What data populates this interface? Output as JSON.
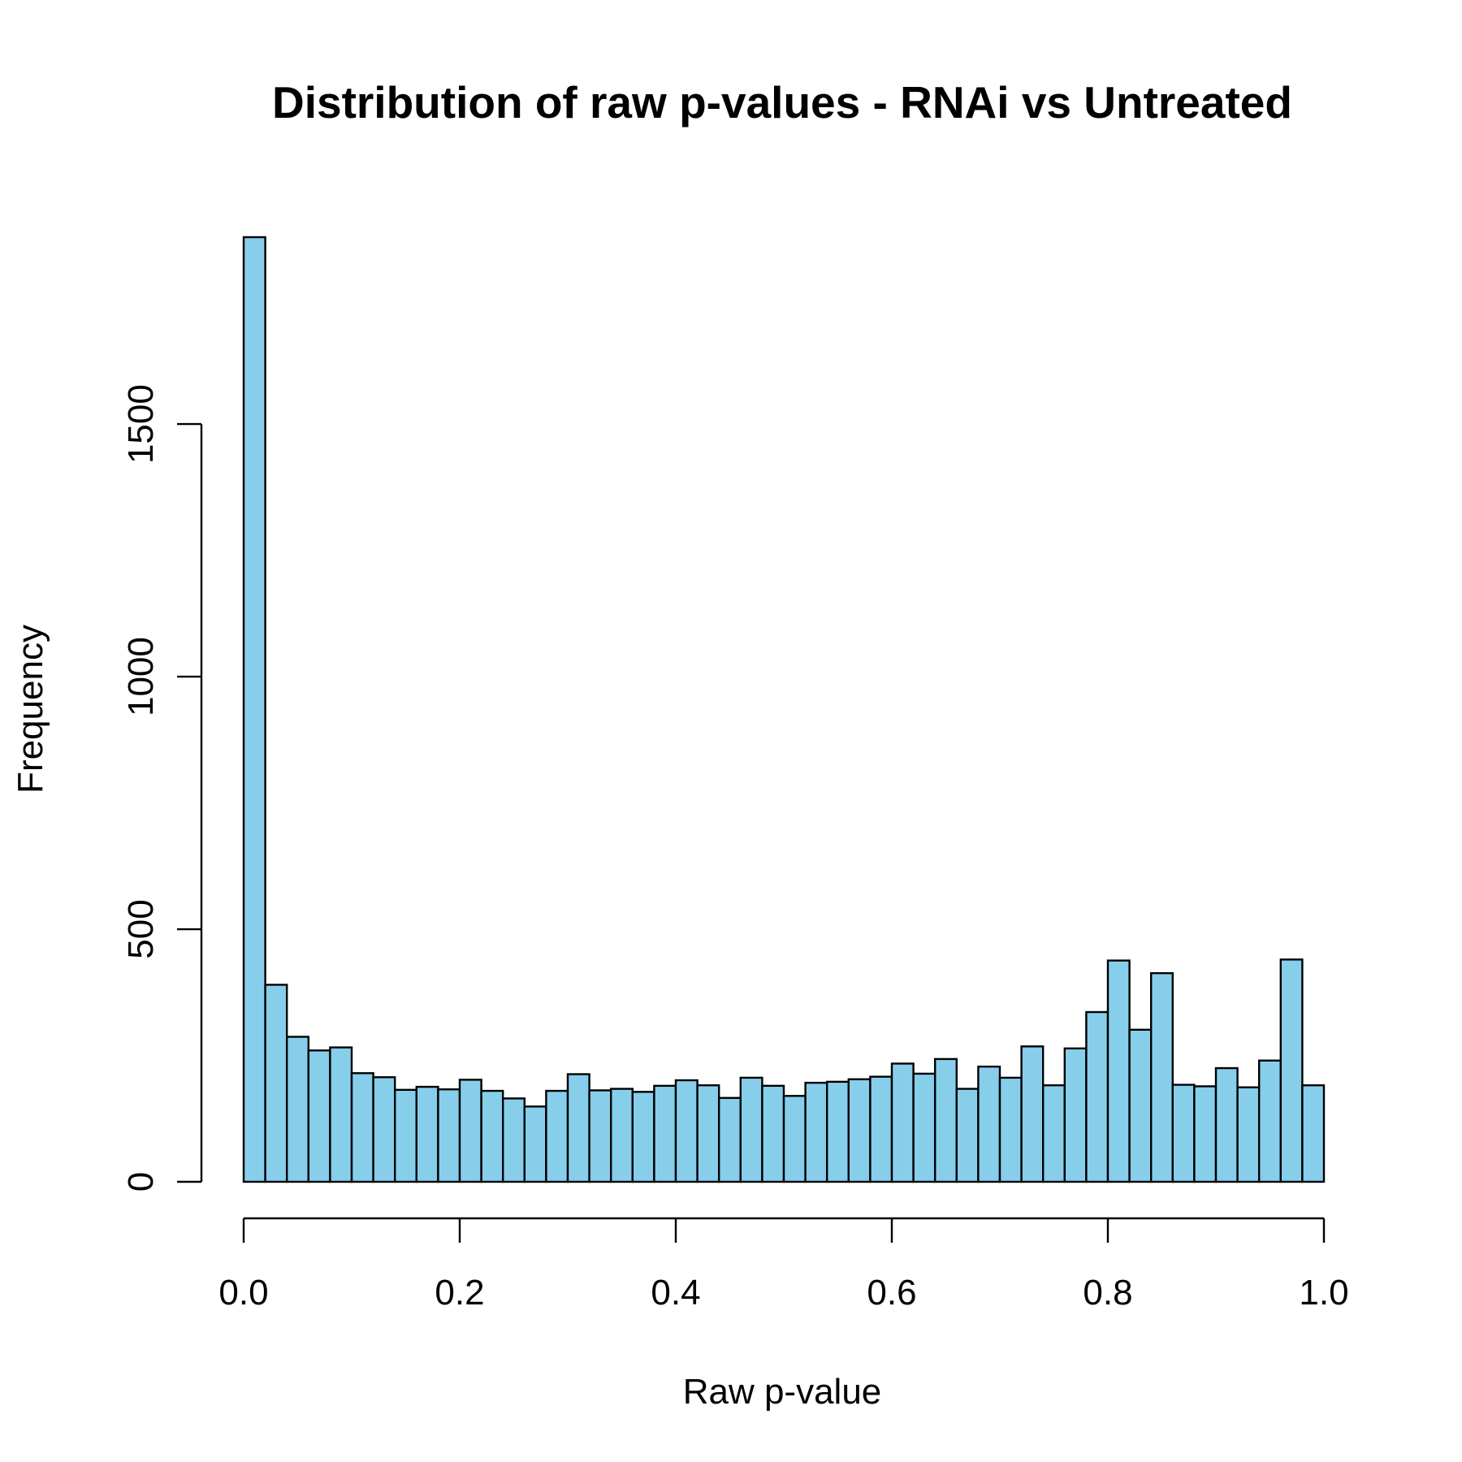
{
  "chart_data": {
    "type": "bar",
    "title": "Distribution of raw p-values - RNAi vs Untreated",
    "xlabel": "Raw p-value",
    "ylabel": "Frequency",
    "xlim": [
      0,
      1
    ],
    "ylim": [
      0,
      1870
    ],
    "bin_width": 0.02,
    "x_ticks": [
      "0.0",
      "0.2",
      "0.4",
      "0.6",
      "0.8",
      "1.0"
    ],
    "y_ticks": [
      "0",
      "500",
      "1000",
      "1500"
    ],
    "bar_color": "#87CEEB",
    "grid": false,
    "legend": "none",
    "x": [
      0.0,
      0.02,
      0.04,
      0.06,
      0.08,
      0.1,
      0.12,
      0.14,
      0.16,
      0.18,
      0.2,
      0.22,
      0.24,
      0.26,
      0.28,
      0.3,
      0.32,
      0.34,
      0.36,
      0.38,
      0.4,
      0.42,
      0.44,
      0.46,
      0.48,
      0.5,
      0.52,
      0.54,
      0.56,
      0.58,
      0.6,
      0.62,
      0.64,
      0.66,
      0.68,
      0.7,
      0.72,
      0.74,
      0.76,
      0.78,
      0.8,
      0.82,
      0.84,
      0.86,
      0.88,
      0.9,
      0.92,
      0.94,
      0.96,
      0.98
    ],
    "values": [
      1870,
      390,
      287,
      260,
      266,
      215,
      207,
      182,
      188,
      183,
      202,
      180,
      165,
      149,
      180,
      213,
      181,
      184,
      178,
      190,
      201,
      191,
      166,
      206,
      190,
      170,
      196,
      198,
      203,
      208,
      234,
      214,
      243,
      184,
      228,
      206,
      268,
      191,
      264,
      336,
      438,
      301,
      413,
      192,
      189,
      225,
      187,
      240,
      440,
      191
    ]
  }
}
